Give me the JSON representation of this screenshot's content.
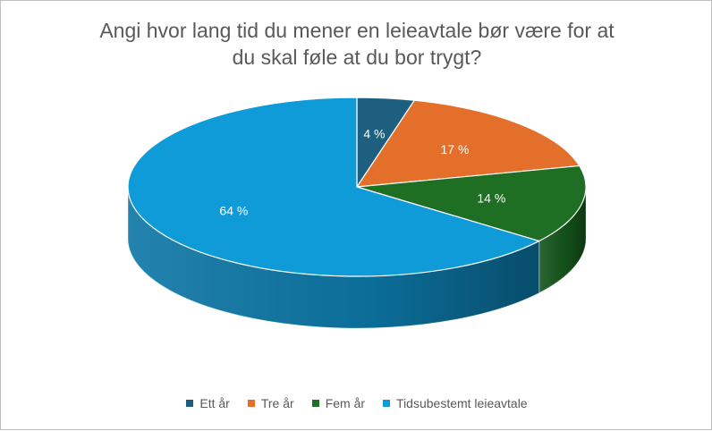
{
  "chart_data": {
    "type": "pie",
    "title_lines": [
      "Angi hvor lang tid du mener en leieavtale bør være for at",
      "du skal føle at du bor trygt?"
    ],
    "categories": [
      "Ett år",
      "Tre år",
      "Fem år",
      "Tidsubestemt leieavtale"
    ],
    "values": [
      4,
      17,
      14,
      64
    ],
    "labels": [
      "4 %",
      "17 %",
      "14 %",
      "64 %"
    ],
    "colors": [
      "#1e5f7f",
      "#e46f2a",
      "#1e6e24",
      "#0e9bd7"
    ],
    "side_colors": [
      "#0f3a4e",
      "#8a3f15",
      "#0b3810",
      "#0b4a68"
    ],
    "style": "3d",
    "legend_position": "bottom"
  }
}
